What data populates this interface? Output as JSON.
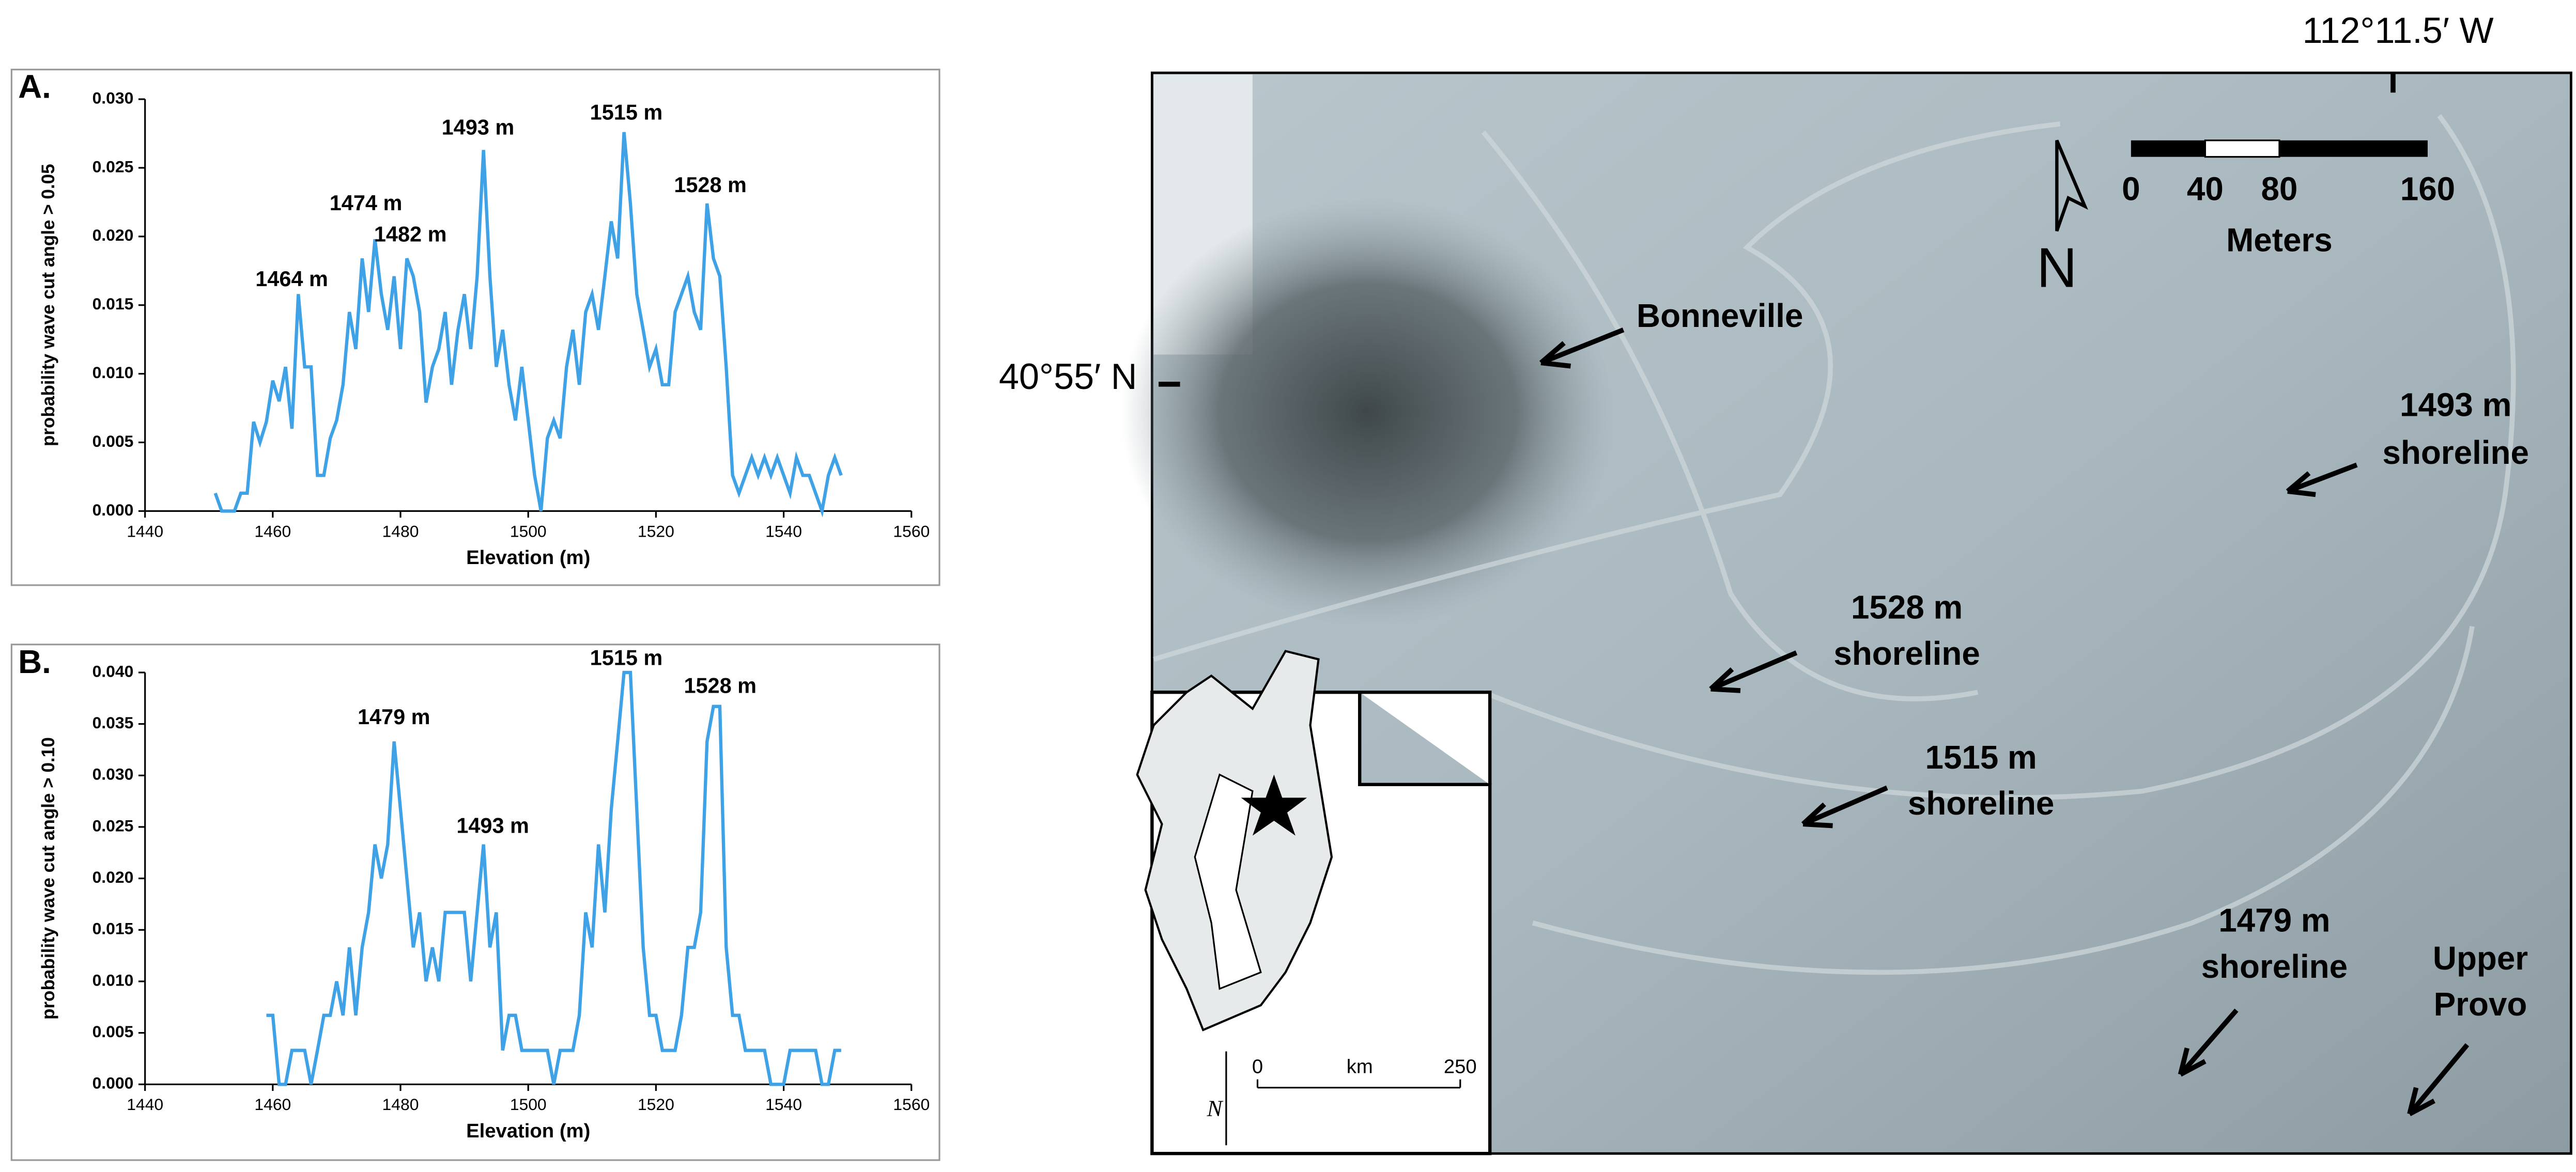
{
  "chart_data": [
    {
      "type": "line",
      "panel": "A.",
      "ylabel": "probability wave cut angle > 0.05",
      "xlabel": "Elevation (m)",
      "xlim": [
        1440,
        1560
      ],
      "xticks": [
        1440,
        1460,
        1480,
        1500,
        1520,
        1540,
        1560
      ],
      "ylim": [
        0,
        0.03
      ],
      "yticks": [
        {
          "value": 0,
          "label": "0.000"
        },
        {
          "value": 0.005,
          "label": "0.005"
        },
        {
          "value": 0.01,
          "label": "0.010"
        },
        {
          "value": 0.015,
          "label": "0.015"
        },
        {
          "value": 0.02,
          "label": "0.020"
        },
        {
          "value": 0.025,
          "label": "0.025"
        },
        {
          "value": 0.03,
          "label": "0.030"
        }
      ],
      "x": [
        1451,
        1452,
        1453,
        1454,
        1455,
        1456,
        1457,
        1458,
        1459,
        1460,
        1461,
        1462,
        1463,
        1464,
        1465,
        1466,
        1467,
        1468,
        1469,
        1470,
        1471,
        1472,
        1473,
        1474,
        1475,
        1476,
        1477,
        1478,
        1479,
        1480,
        1481,
        1482,
        1483,
        1484,
        1485,
        1486,
        1487,
        1488,
        1489,
        1490,
        1491,
        1492,
        1493,
        1494,
        1495,
        1496,
        1497,
        1498,
        1499,
        1500,
        1501,
        1502,
        1503,
        1504,
        1505,
        1506,
        1507,
        1508,
        1509,
        1510,
        1511,
        1512,
        1513,
        1514,
        1515,
        1516,
        1517,
        1518,
        1519,
        1520,
        1521,
        1522,
        1523,
        1524,
        1525,
        1526,
        1527,
        1528,
        1529,
        1530,
        1531,
        1532,
        1533,
        1534,
        1535,
        1536,
        1537,
        1538,
        1539,
        1540,
        1541,
        1542,
        1543,
        1544,
        1545,
        1546,
        1547,
        1548,
        1549
      ],
      "series": [
        {
          "color": "#3fa2e6",
          "values": [
            0.0013,
            0,
            0,
            0,
            0.0013,
            0.0013,
            0.0065,
            0.005,
            0.0065,
            0.0095,
            0.008,
            0.0105,
            0.006,
            0.0158,
            0.0105,
            0.0105,
            0.0026,
            0.0026,
            0.0053,
            0.0066,
            0.0092,
            0.0145,
            0.0118,
            0.0184,
            0.0145,
            0.0198,
            0.0158,
            0.0132,
            0.0171,
            0.0118,
            0.0184,
            0.0171,
            0.0145,
            0.0079,
            0.0105,
            0.0118,
            0.0145,
            0.0092,
            0.0132,
            0.0158,
            0.0118,
            0.0171,
            0.0263,
            0.0171,
            0.0105,
            0.0132,
            0.0092,
            0.0066,
            0.0105,
            0.0066,
            0.0026,
            0,
            0.0053,
            0.0066,
            0.0053,
            0.0105,
            0.0132,
            0.0092,
            0.0145,
            0.0158,
            0.0132,
            0.0171,
            0.0211,
            0.0184,
            0.0276,
            0.0224,
            0.0158,
            0.0132,
            0.0105,
            0.0118,
            0.0092,
            0.0092,
            0.0145,
            0.0158,
            0.0171,
            0.0145,
            0.0132,
            0.0224,
            0.0184,
            0.0171,
            0.0105,
            0.0026,
            0.0013,
            0.0026,
            0.0039,
            0.0026,
            0.0039,
            0.0026,
            0.0039,
            0.0026,
            0.0013,
            0.0039,
            0.0026,
            0.0026,
            0.0013,
            0,
            0.0026,
            0.0039,
            0.0026
          ]
        }
      ],
      "annotations": [
        "1464 m",
        "1474 m",
        "1482 m",
        "1493 m",
        "1515 m",
        "1528 m"
      ]
    },
    {
      "type": "line",
      "panel": "B.",
      "ylabel": "probability wave cut angle > 0.10",
      "xlabel": "Elevation (m)",
      "xlim": [
        1440,
        1560
      ],
      "xticks": [
        1440,
        1460,
        1480,
        1500,
        1520,
        1540,
        1560
      ],
      "ylim": [
        0,
        0.04
      ],
      "yticks": [
        {
          "value": 0,
          "label": "0.000"
        },
        {
          "value": 0.005,
          "label": "0.005"
        },
        {
          "value": 0.01,
          "label": "0.010"
        },
        {
          "value": 0.015,
          "label": "0.015"
        },
        {
          "value": 0.02,
          "label": "0.020"
        },
        {
          "value": 0.025,
          "label": "0.025"
        },
        {
          "value": 0.03,
          "label": "0.030"
        },
        {
          "value": 0.035,
          "label": "0.035"
        },
        {
          "value": 0.04,
          "label": "0.040"
        }
      ],
      "x": [
        1459,
        1460,
        1461,
        1462,
        1463,
        1464,
        1465,
        1466,
        1467,
        1468,
        1469,
        1470,
        1471,
        1472,
        1473,
        1474,
        1475,
        1476,
        1477,
        1478,
        1479,
        1480,
        1481,
        1482,
        1483,
        1484,
        1485,
        1486,
        1487,
        1488,
        1489,
        1490,
        1491,
        1492,
        1493,
        1494,
        1495,
        1496,
        1497,
        1498,
        1499,
        1500,
        1501,
        1502,
        1503,
        1504,
        1505,
        1506,
        1507,
        1508,
        1509,
        1510,
        1511,
        1512,
        1513,
        1514,
        1515,
        1516,
        1517,
        1518,
        1519,
        1520,
        1521,
        1522,
        1523,
        1524,
        1525,
        1526,
        1527,
        1528,
        1529,
        1530,
        1531,
        1532,
        1533,
        1534,
        1535,
        1536,
        1537,
        1538,
        1539,
        1540,
        1541,
        1542,
        1543,
        1544,
        1545,
        1546,
        1547,
        1548,
        1549
      ],
      "series": [
        {
          "color": "#3fa2e6",
          "values": [
            0.0067,
            0.0067,
            0,
            0,
            0.0033,
            0.0033,
            0.0033,
            0,
            0.0033,
            0.0067,
            0.0067,
            0.01,
            0.0067,
            0.0133,
            0.0067,
            0.0133,
            0.0167,
            0.0233,
            0.02,
            0.0233,
            0.0333,
            0.0267,
            0.02,
            0.0133,
            0.0167,
            0.01,
            0.0133,
            0.01,
            0.0167,
            0.0167,
            0.0167,
            0.0167,
            0.01,
            0.0167,
            0.0233,
            0.0133,
            0.0167,
            0.0033,
            0.0067,
            0.0067,
            0.0033,
            0.0033,
            0.0033,
            0.0033,
            0.0033,
            0,
            0.0033,
            0.0033,
            0.0033,
            0.0067,
            0.0167,
            0.0133,
            0.0233,
            0.0167,
            0.0267,
            0.0333,
            0.04,
            0.04,
            0.0267,
            0.0133,
            0.0067,
            0.0067,
            0.0033,
            0.0033,
            0.0033,
            0.0067,
            0.0133,
            0.0133,
            0.0167,
            0.0333,
            0.0367,
            0.0367,
            0.0133,
            0.0067,
            0.0067,
            0.0033,
            0.0033,
            0.0033,
            0.0033,
            0,
            0,
            0,
            0.0033,
            0.0033,
            0.0033,
            0.0033,
            0.0033,
            0,
            0,
            0.0033,
            0.0033
          ]
        }
      ],
      "annotations": [
        "1479 m",
        "1493 m",
        "1515 m",
        "1528 m"
      ]
    }
  ],
  "map": {
    "longitude": "112°11.5′ W",
    "latitude": "40°55′ N",
    "labels": [
      "Bonneville",
      "1493 m",
      "shoreline",
      "1528 m",
      "shoreline",
      "1515 m",
      "shoreline",
      "1479 m",
      "shoreline",
      "Upper",
      "Provo"
    ],
    "scale_bar": {
      "ticks": [
        "0",
        "40",
        "80",
        "160"
      ],
      "unit": "Meters"
    },
    "north": "N",
    "inset": {
      "ticks": [
        "0",
        "250"
      ],
      "unit": "km",
      "north": "N"
    }
  }
}
